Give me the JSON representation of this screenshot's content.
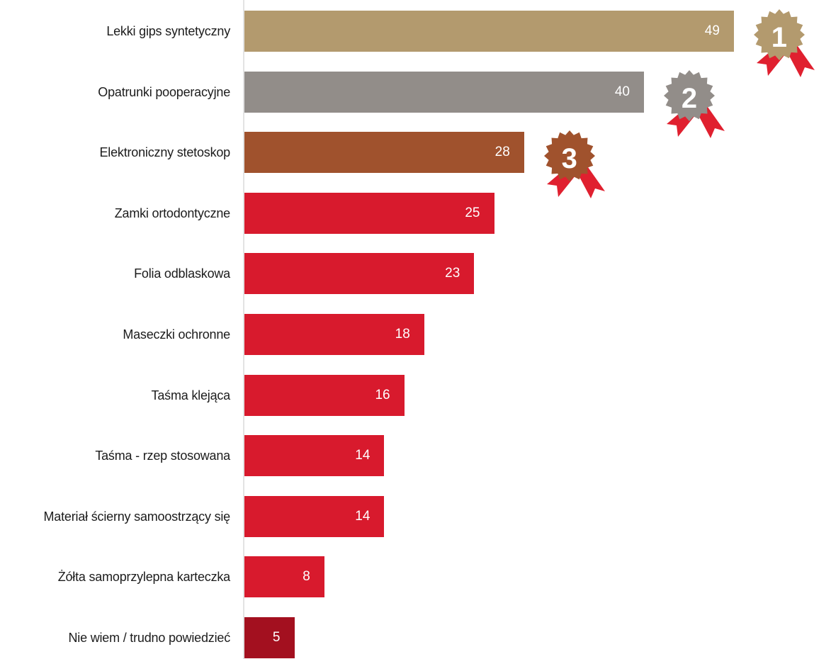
{
  "chart_data": {
    "type": "bar",
    "orientation": "horizontal",
    "categories": [
      "Lekki gips syntetyczny",
      "Opatrunki pooperacyjne",
      "Elektroniczny stetoskop",
      "Zamki ortodontyczne",
      "Folia odblaskowa",
      "Maseczki ochronne",
      "Taśma klejąca",
      "Taśma - rzep stosowana",
      "Materiał ścierny samoostrzący się",
      "Żółta samoprzylepna karteczka",
      "Nie wiem / trudno powiedzieć"
    ],
    "values": [
      49,
      40,
      28,
      25,
      23,
      18,
      16,
      14,
      14,
      8,
      5
    ],
    "value_labels": [
      "49",
      "40",
      "28",
      "25",
      "23",
      "18",
      "16",
      "14",
      "14",
      "8",
      "5"
    ],
    "bar_colors": [
      "#b39a6e",
      "#928d89",
      "#a0522d",
      "#d81a2d",
      "#d81a2d",
      "#d81a2d",
      "#d81a2d",
      "#d81a2d",
      "#d81a2d",
      "#d81a2d",
      "#a3101f"
    ],
    "xlim": [
      0,
      49
    ],
    "grid": false,
    "medals": [
      {
        "rank": "1",
        "bar_index": 0,
        "badge_color": "#b39a6e",
        "ribbon_color": "#e0202f"
      },
      {
        "rank": "2",
        "bar_index": 1,
        "badge_color": "#928d89",
        "ribbon_color": "#e0202f"
      },
      {
        "rank": "3",
        "bar_index": 2,
        "badge_color": "#a0522d",
        "ribbon_color": "#e0202f"
      }
    ]
  }
}
